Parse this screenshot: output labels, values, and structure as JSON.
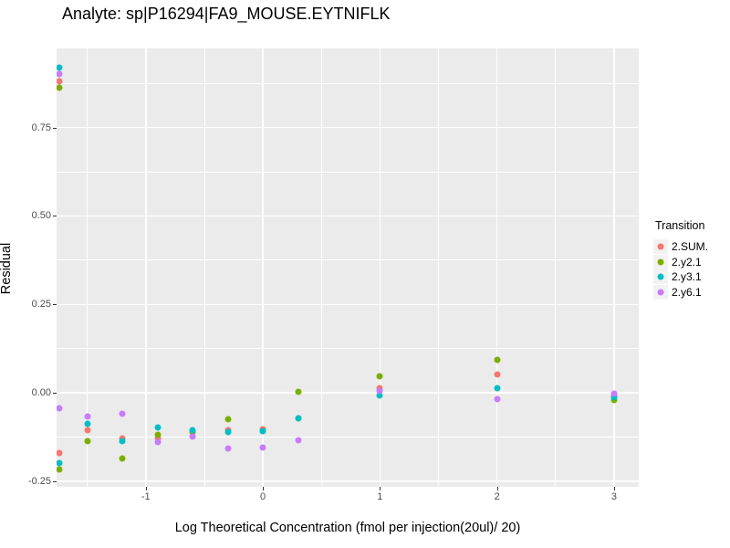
{
  "title": "Analyte: sp|P16294|FA9_MOUSE.EYTNIFLK",
  "legend": {
    "title": "Transition",
    "items": [
      {
        "label": "2.SUM.",
        "color": "#F8766D"
      },
      {
        "label": "2.y2.1",
        "color": "#7CAE00"
      },
      {
        "label": "2.y3.1",
        "color": "#00BFC4"
      },
      {
        "label": "2.y6.1",
        "color": "#C77CFF"
      }
    ]
  },
  "chart_data": {
    "type": "scatter",
    "title": "Analyte: sp|P16294|FA9_MOUSE.EYTNIFLK",
    "xlabel": "Log Theoretical Concentration (fmol per injection(20ul)/ 20)",
    "ylabel": "Residual",
    "xlim": [
      -1.762,
      3.211
    ],
    "ylim": [
      -0.266,
      0.974
    ],
    "grid": true,
    "legend_position": "right",
    "panel_background": "#EBEBEB",
    "grid_color": "#FFFFFF",
    "tick_label_color": "#4D4D4D",
    "x_ticks": [
      {
        "v": -1,
        "label": "-1"
      },
      {
        "v": 0,
        "label": "0"
      },
      {
        "v": 1,
        "label": "1"
      },
      {
        "v": 2,
        "label": "2"
      },
      {
        "v": 3,
        "label": "3"
      }
    ],
    "y_ticks": [
      {
        "v": -0.25,
        "label": "-0.25"
      },
      {
        "v": 0.0,
        "label": "0.00"
      },
      {
        "v": 0.25,
        "label": "0.25"
      },
      {
        "v": 0.5,
        "label": "0.50"
      },
      {
        "v": 0.75,
        "label": "0.75"
      }
    ],
    "x_minor_gridlines": [
      -1.5,
      -0.5,
      0.5,
      1.5,
      2.5
    ],
    "y_minor_gridlines": [
      -0.125,
      0.125,
      0.375,
      0.625,
      0.875
    ],
    "series": [
      {
        "name": "2.SUM.",
        "color": "#F8766D",
        "points": [
          [
            -1.74,
            0.88
          ],
          [
            -1.74,
            -0.171
          ],
          [
            -1.5,
            -0.106
          ],
          [
            -1.2,
            -0.129
          ],
          [
            -0.9,
            -0.128
          ],
          [
            -0.6,
            -0.108
          ],
          [
            -0.3,
            -0.106
          ],
          [
            0.0,
            -0.103
          ],
          [
            0.3,
            -0.072
          ],
          [
            1.0,
            0.013
          ],
          [
            2.0,
            0.052
          ],
          [
            3.0,
            -0.008
          ]
        ]
      },
      {
        "name": "2.y2.1",
        "color": "#7CAE00",
        "points": [
          [
            -1.74,
            0.862
          ],
          [
            -1.74,
            -0.217
          ],
          [
            -1.5,
            -0.137
          ],
          [
            -1.2,
            -0.186
          ],
          [
            -0.9,
            -0.119
          ],
          [
            -0.6,
            -0.112
          ],
          [
            -0.3,
            -0.075
          ],
          [
            0.0,
            -0.108
          ],
          [
            0.3,
            0.002
          ],
          [
            1.0,
            0.047
          ],
          [
            2.0,
            0.093
          ],
          [
            3.0,
            -0.021
          ]
        ]
      },
      {
        "name": "2.y3.1",
        "color": "#00BFC4",
        "points": [
          [
            -1.74,
            0.921
          ],
          [
            -1.74,
            -0.199
          ],
          [
            -1.5,
            -0.088
          ],
          [
            -1.2,
            -0.137
          ],
          [
            -0.9,
            -0.098
          ],
          [
            -0.6,
            -0.106
          ],
          [
            -0.3,
            -0.111
          ],
          [
            0.0,
            -0.109
          ],
          [
            0.3,
            -0.072
          ],
          [
            1.0,
            -0.008
          ],
          [
            2.0,
            0.013
          ],
          [
            3.0,
            -0.012
          ]
        ]
      },
      {
        "name": "2.y6.1",
        "color": "#C77CFF",
        "points": [
          [
            -1.74,
            0.901
          ],
          [
            -1.74,
            -0.044
          ],
          [
            -1.5,
            -0.067
          ],
          [
            -1.2,
            -0.059
          ],
          [
            -0.9,
            -0.14
          ],
          [
            -0.6,
            -0.124
          ],
          [
            -0.3,
            -0.158
          ],
          [
            0.0,
            -0.155
          ],
          [
            0.3,
            -0.134
          ],
          [
            1.0,
            0.005
          ],
          [
            2.0,
            -0.018
          ],
          [
            3.0,
            -0.002
          ]
        ]
      }
    ]
  }
}
